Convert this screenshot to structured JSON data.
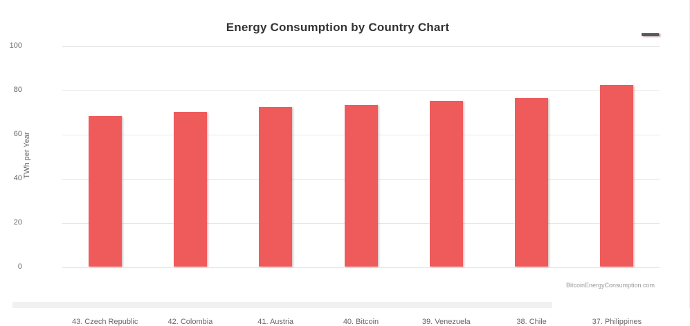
{
  "title": "Energy Consumption by Country Chart",
  "credits": "BitcoinEnergyConsumption.com",
  "colors": {
    "bar": "#ef5b5b",
    "grid": "#e6e6e6",
    "axis_text": "#666666",
    "title_text": "#333333",
    "credits_text": "#999999",
    "menu_icon": "#58595b"
  },
  "menu_icon_name": "hamburger-menu-icon",
  "chart_data": {
    "type": "bar",
    "title": "Energy Consumption by Country Chart",
    "categories": [
      "43. Czech Republic",
      "42. Colombia",
      "41. Austria",
      "40. Bitcoin",
      "39. Venezuela",
      "38. Chile",
      "37. Philippines"
    ],
    "values": [
      68,
      70,
      72.2,
      73.1,
      75,
      76.2,
      82.1
    ],
    "xlabel": "",
    "ylabel": "TWh per Year",
    "ylim": [
      0,
      100
    ],
    "yticks": [
      0,
      20,
      40,
      60,
      80,
      100
    ],
    "grid": true,
    "legend": false
  }
}
